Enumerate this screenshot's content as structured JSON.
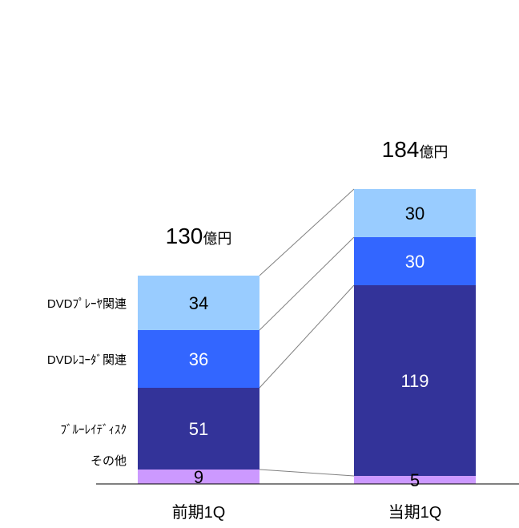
{
  "chart_data": {
    "type": "bar",
    "stacked": true,
    "categories": [
      "前期1Q",
      "当期1Q"
    ],
    "series": [
      {
        "name": "その他",
        "values": [
          9,
          5
        ],
        "color": "#cc99ff"
      },
      {
        "name": "ﾌﾞﾙｰﾚｲﾃﾞｨｽｸ",
        "values": [
          51,
          119
        ],
        "color": "#333399"
      },
      {
        "name": "DVDﾚｺｰﾀﾞ関連",
        "values": [
          36,
          30
        ],
        "color": "#3366ff"
      },
      {
        "name": "DVDﾌﾟﾚｰﾔ関連",
        "values": [
          34,
          30
        ],
        "color": "#99ccff"
      }
    ],
    "totals": [
      {
        "value": "130",
        "unit": "億円"
      },
      {
        "value": "184",
        "unit": "億円"
      }
    ],
    "value_text_colors": [
      "#000000",
      "#ffffff",
      "#ffffff",
      "#000000"
    ],
    "ylim": [
      0,
      184
    ],
    "grid": false,
    "legend": "left-side labels",
    "connector_lines": true
  }
}
